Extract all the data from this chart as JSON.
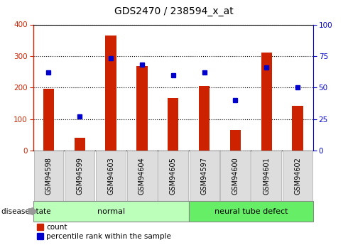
{
  "title": "GDS2470 / 238594_x_at",
  "categories": [
    "GSM94598",
    "GSM94599",
    "GSM94603",
    "GSM94604",
    "GSM94605",
    "GSM94597",
    "GSM94600",
    "GSM94601",
    "GSM94602"
  ],
  "counts": [
    197,
    42,
    365,
    268,
    168,
    205,
    65,
    310,
    142
  ],
  "percentiles": [
    62,
    27,
    73,
    68,
    60,
    62,
    40,
    66,
    50
  ],
  "bar_color": "#cc2200",
  "dot_color": "#0000cc",
  "normal_indices": [
    0,
    1,
    2,
    3,
    4
  ],
  "defect_indices": [
    5,
    6,
    7,
    8
  ],
  "normal_label": "normal",
  "defect_label": "neural tube defect",
  "disease_state_label": "disease state",
  "normal_bg": "#bbffbb",
  "defect_bg": "#66ee66",
  "tick_bg": "#dddddd",
  "ylim_left": [
    0,
    400
  ],
  "ylim_right": [
    0,
    100
  ],
  "yticks_left": [
    0,
    100,
    200,
    300,
    400
  ],
  "yticks_right": [
    0,
    25,
    50,
    75,
    100
  ],
  "legend_count": "count",
  "legend_pct": "percentile rank within the sample",
  "bar_width": 0.35,
  "figsize": [
    4.9,
    3.45
  ],
  "dpi": 100
}
